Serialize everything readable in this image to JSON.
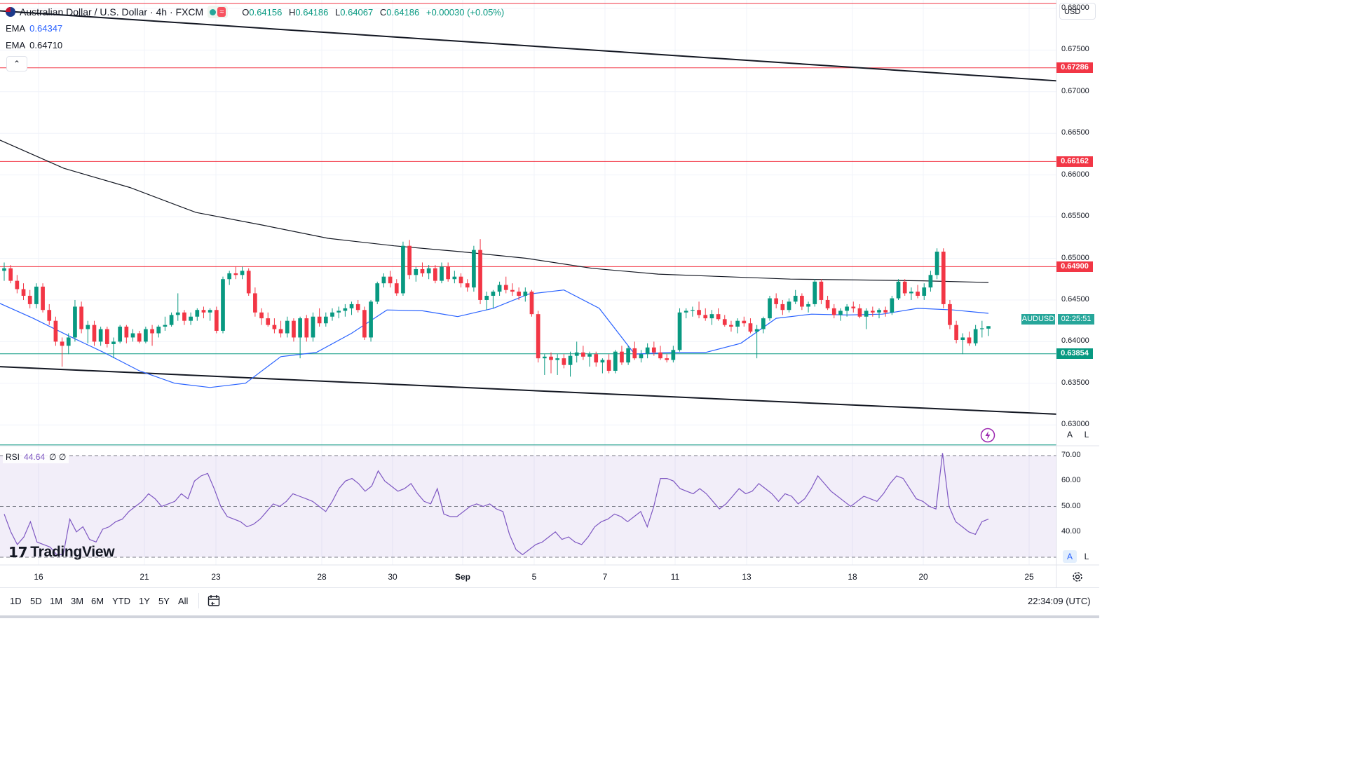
{
  "header": {
    "symbol_title": "Australian Dollar / U.S. Dollar · 4h · FXCM",
    "ohlc": {
      "o_key": "O",
      "o": "0.64156",
      "h_key": "H",
      "h": "0.64186",
      "l_key": "L",
      "l": "0.64067",
      "c_key": "C",
      "c": "0.64186",
      "change": "+0.00030 (+0.05%)"
    },
    "currency": "USD"
  },
  "indicators": {
    "ema1": {
      "label": "EMA",
      "value": "0.64347",
      "color": "#2962ff"
    },
    "ema2": {
      "label": "EMA",
      "value": "0.64710",
      "color": "#131722"
    },
    "rsi": {
      "label": "RSI",
      "value": "44.64",
      "extra1": "∅",
      "extra2": "∅",
      "color": "#7e57c2"
    }
  },
  "price_axis": {
    "ticks": [
      "0.68000",
      "0.67500",
      "0.67000",
      "0.66500",
      "0.66000",
      "0.65500",
      "0.65000",
      "0.64500",
      "0.64000",
      "0.63500",
      "0.63000"
    ],
    "level_tags": [
      {
        "value": "0.67286",
        "color": "#f23645"
      },
      {
        "value": "0.66162",
        "color": "#f23645"
      },
      {
        "value": "0.64900",
        "color": "#f23645"
      },
      {
        "value": "0.63854",
        "color": "#089981"
      }
    ],
    "symbol_tag": "AUDUSD",
    "countdown": "02:25:51"
  },
  "rsi_axis": {
    "ticks": [
      "70.00",
      "60.00",
      "50.00",
      "40.00"
    ]
  },
  "time_axis": {
    "labels": [
      "16",
      "21",
      "23",
      "28",
      "30",
      "Sep",
      "5",
      "7",
      "11",
      "13",
      "18",
      "20",
      "25"
    ]
  },
  "toolbar": {
    "ranges": [
      "1D",
      "5D",
      "1M",
      "3M",
      "6M",
      "YTD",
      "1Y",
      "5Y",
      "All"
    ],
    "clock": "22:34:09 (UTC)",
    "auto_label": "A",
    "log_label": "L",
    "collapse_glyph": "⌃"
  },
  "branding": {
    "logo_text": "TradingView",
    "logo_mark": "17"
  },
  "chart_data": {
    "type": "candlestick",
    "instrument": "AUDUSD",
    "timeframe": "4h",
    "ylim": [
      0.6275,
      0.681
    ],
    "horizontal_levels": [
      {
        "price": 0.6806,
        "color": "#f23645"
      },
      {
        "price": 0.67286,
        "color": "#f23645"
      },
      {
        "price": 0.66162,
        "color": "#f23645"
      },
      {
        "price": 0.649,
        "color": "#f23645"
      },
      {
        "price": 0.63854,
        "color": "#089981"
      },
      {
        "price": 0.6276,
        "color": "#089981"
      }
    ],
    "trendlines": [
      {
        "from": [
          0,
          0.6797
        ],
        "to": [
          1.0,
          0.6713
        ]
      },
      {
        "from": [
          0,
          0.637
        ],
        "to": [
          1.0,
          0.6313
        ]
      }
    ],
    "candles": [
      [
        0.6485,
        0.6495,
        0.6473,
        0.6488
      ],
      [
        0.6488,
        0.6492,
        0.647,
        0.6473
      ],
      [
        0.6473,
        0.648,
        0.6458,
        0.6463
      ],
      [
        0.6463,
        0.647,
        0.645,
        0.6455
      ],
      [
        0.6455,
        0.6462,
        0.644,
        0.6445
      ],
      [
        0.6445,
        0.647,
        0.644,
        0.6466
      ],
      [
        0.6466,
        0.647,
        0.6435,
        0.6438
      ],
      [
        0.6438,
        0.6445,
        0.642,
        0.6425
      ],
      [
        0.6425,
        0.643,
        0.6395,
        0.64
      ],
      [
        0.64,
        0.6405,
        0.637,
        0.6395
      ],
      [
        0.6395,
        0.641,
        0.6385,
        0.6405
      ],
      [
        0.6405,
        0.645,
        0.64,
        0.6442
      ],
      [
        0.6442,
        0.6448,
        0.641,
        0.6415
      ],
      [
        0.6415,
        0.6425,
        0.6398,
        0.642
      ],
      [
        0.642,
        0.6425,
        0.6395,
        0.64
      ],
      [
        0.64,
        0.6418,
        0.6395,
        0.6415
      ],
      [
        0.6415,
        0.6418,
        0.6393,
        0.6397
      ],
      [
        0.6397,
        0.6405,
        0.638,
        0.64
      ],
      [
        0.64,
        0.642,
        0.6398,
        0.6418
      ],
      [
        0.6418,
        0.642,
        0.6398,
        0.6405
      ],
      [
        0.6405,
        0.6415,
        0.64,
        0.641
      ],
      [
        0.641,
        0.6413,
        0.6398,
        0.64
      ],
      [
        0.64,
        0.6418,
        0.6398,
        0.6415
      ],
      [
        0.6415,
        0.642,
        0.6395,
        0.641
      ],
      [
        0.641,
        0.642,
        0.6405,
        0.6418
      ],
      [
        0.6418,
        0.643,
        0.6413,
        0.642
      ],
      [
        0.642,
        0.6435,
        0.6418,
        0.6432
      ],
      [
        0.6432,
        0.6458,
        0.6425,
        0.6435
      ],
      [
        0.6435,
        0.6438,
        0.642,
        0.6425
      ],
      [
        0.6425,
        0.6435,
        0.642,
        0.643
      ],
      [
        0.643,
        0.644,
        0.6425,
        0.6438
      ],
      [
        0.6438,
        0.6442,
        0.6428,
        0.6435
      ],
      [
        0.6435,
        0.644,
        0.6425,
        0.6438
      ],
      [
        0.6438,
        0.6442,
        0.641,
        0.6413
      ],
      [
        0.6413,
        0.6478,
        0.641,
        0.6475
      ],
      [
        0.6475,
        0.6485,
        0.6468,
        0.6482
      ],
      [
        0.6482,
        0.649,
        0.6475,
        0.648
      ],
      [
        0.648,
        0.649,
        0.6475,
        0.6485
      ],
      [
        0.6485,
        0.6488,
        0.6455,
        0.6458
      ],
      [
        0.6458,
        0.6465,
        0.643,
        0.6435
      ],
      [
        0.6435,
        0.644,
        0.642,
        0.6428
      ],
      [
        0.6428,
        0.6435,
        0.6418,
        0.642
      ],
      [
        0.642,
        0.6428,
        0.641,
        0.6415
      ],
      [
        0.6415,
        0.6425,
        0.6405,
        0.641
      ],
      [
        0.641,
        0.643,
        0.6405,
        0.6425
      ],
      [
        0.6425,
        0.6428,
        0.64,
        0.6405
      ],
      [
        0.6405,
        0.643,
        0.638,
        0.6428
      ],
      [
        0.6428,
        0.6432,
        0.64,
        0.6405
      ],
      [
        0.6405,
        0.6435,
        0.64,
        0.643
      ],
      [
        0.643,
        0.644,
        0.6418,
        0.6422
      ],
      [
        0.6422,
        0.6435,
        0.6418,
        0.643
      ],
      [
        0.643,
        0.644,
        0.6425,
        0.6435
      ],
      [
        0.6435,
        0.6442,
        0.6428,
        0.6437
      ],
      [
        0.6437,
        0.6445,
        0.643,
        0.644
      ],
      [
        0.644,
        0.6448,
        0.6432,
        0.6445
      ],
      [
        0.6445,
        0.645,
        0.6435,
        0.6438
      ],
      [
        0.6438,
        0.6442,
        0.6402,
        0.6405
      ],
      [
        0.6405,
        0.645,
        0.64,
        0.6448
      ],
      [
        0.6448,
        0.6472,
        0.6445,
        0.647
      ],
      [
        0.647,
        0.6482,
        0.6465,
        0.6478
      ],
      [
        0.6478,
        0.6485,
        0.6465,
        0.647
      ],
      [
        0.647,
        0.6475,
        0.6455,
        0.6458
      ],
      [
        0.6458,
        0.652,
        0.6455,
        0.6515
      ],
      [
        0.6515,
        0.6522,
        0.6475,
        0.648
      ],
      [
        0.648,
        0.649,
        0.6472,
        0.6487
      ],
      [
        0.6487,
        0.6495,
        0.6478,
        0.6482
      ],
      [
        0.6482,
        0.6492,
        0.6475,
        0.6488
      ],
      [
        0.6488,
        0.6492,
        0.647,
        0.6473
      ],
      [
        0.6473,
        0.6495,
        0.647,
        0.649
      ],
      [
        0.649,
        0.6495,
        0.6472,
        0.6475
      ],
      [
        0.6475,
        0.6485,
        0.647,
        0.6478
      ],
      [
        0.6478,
        0.6482,
        0.6465,
        0.647
      ],
      [
        0.647,
        0.6475,
        0.646,
        0.6465
      ],
      [
        0.6465,
        0.6515,
        0.646,
        0.651
      ],
      [
        0.651,
        0.6523,
        0.6445,
        0.645
      ],
      [
        0.645,
        0.646,
        0.6438,
        0.6455
      ],
      [
        0.6455,
        0.6462,
        0.644,
        0.646
      ],
      [
        0.646,
        0.6472,
        0.6455,
        0.6468
      ],
      [
        0.6468,
        0.6478,
        0.6458,
        0.6462
      ],
      [
        0.6462,
        0.647,
        0.6455,
        0.646
      ],
      [
        0.646,
        0.6465,
        0.645,
        0.6455
      ],
      [
        0.6455,
        0.6465,
        0.6448,
        0.646
      ],
      [
        0.646,
        0.6462,
        0.643,
        0.6433
      ],
      [
        0.6433,
        0.6437,
        0.6375,
        0.638
      ],
      [
        0.638,
        0.6385,
        0.636,
        0.6382
      ],
      [
        0.6382,
        0.6387,
        0.6362,
        0.6378
      ],
      [
        0.6378,
        0.6385,
        0.636,
        0.638
      ],
      [
        0.638,
        0.6385,
        0.6368,
        0.6372
      ],
      [
        0.6372,
        0.6388,
        0.6358,
        0.6383
      ],
      [
        0.6383,
        0.64,
        0.6375,
        0.6387
      ],
      [
        0.6387,
        0.6395,
        0.6378,
        0.6382
      ],
      [
        0.6382,
        0.6388,
        0.637,
        0.6385
      ],
      [
        0.6385,
        0.6388,
        0.637,
        0.6375
      ],
      [
        0.6375,
        0.638,
        0.6362,
        0.6378
      ],
      [
        0.6378,
        0.6385,
        0.6362,
        0.6365
      ],
      [
        0.6365,
        0.639,
        0.6362,
        0.6388
      ],
      [
        0.6388,
        0.6395,
        0.6372,
        0.6375
      ],
      [
        0.6375,
        0.6395,
        0.6372,
        0.6392
      ],
      [
        0.6392,
        0.64,
        0.6378,
        0.638
      ],
      [
        0.638,
        0.639,
        0.6375,
        0.6385
      ],
      [
        0.6385,
        0.6398,
        0.638,
        0.6393
      ],
      [
        0.6393,
        0.64,
        0.6383,
        0.6387
      ],
      [
        0.6387,
        0.6395,
        0.6378,
        0.638
      ],
      [
        0.638,
        0.6385,
        0.6375,
        0.6378
      ],
      [
        0.6378,
        0.6395,
        0.6375,
        0.639
      ],
      [
        0.639,
        0.644,
        0.6388,
        0.6435
      ],
      [
        0.6435,
        0.644,
        0.6428,
        0.6437
      ],
      [
        0.6437,
        0.6442,
        0.643,
        0.6438
      ],
      [
        0.6438,
        0.6448,
        0.6428,
        0.6432
      ],
      [
        0.6432,
        0.644,
        0.6425,
        0.6428
      ],
      [
        0.6428,
        0.6438,
        0.642,
        0.6433
      ],
      [
        0.6433,
        0.644,
        0.6425,
        0.6427
      ],
      [
        0.6427,
        0.6432,
        0.6418,
        0.642
      ],
      [
        0.642,
        0.6425,
        0.6412,
        0.6418
      ],
      [
        0.6418,
        0.6428,
        0.641,
        0.6425
      ],
      [
        0.6425,
        0.643,
        0.6418,
        0.6422
      ],
      [
        0.6422,
        0.6428,
        0.641,
        0.6412
      ],
      [
        0.6412,
        0.642,
        0.638,
        0.6415
      ],
      [
        0.6415,
        0.643,
        0.641,
        0.6428
      ],
      [
        0.6428,
        0.6455,
        0.6425,
        0.6452
      ],
      [
        0.6452,
        0.6458,
        0.644,
        0.6445
      ],
      [
        0.6445,
        0.645,
        0.6432,
        0.6438
      ],
      [
        0.6438,
        0.6452,
        0.6435,
        0.6448
      ],
      [
        0.6448,
        0.6462,
        0.6445,
        0.6455
      ],
      [
        0.6455,
        0.6458,
        0.6438,
        0.6442
      ],
      [
        0.6442,
        0.6448,
        0.6435,
        0.6445
      ],
      [
        0.6445,
        0.6475,
        0.6442,
        0.6472
      ],
      [
        0.6472,
        0.6475,
        0.6445,
        0.645
      ],
      [
        0.645,
        0.6455,
        0.6438,
        0.644
      ],
      [
        0.644,
        0.6445,
        0.6428,
        0.6432
      ],
      [
        0.6432,
        0.644,
        0.6425,
        0.6437
      ],
      [
        0.6437,
        0.6445,
        0.643,
        0.6442
      ],
      [
        0.6442,
        0.6448,
        0.6435,
        0.644
      ],
      [
        0.644,
        0.6445,
        0.6428,
        0.643
      ],
      [
        0.643,
        0.644,
        0.6415,
        0.6437
      ],
      [
        0.6437,
        0.6442,
        0.643,
        0.6435
      ],
      [
        0.6435,
        0.644,
        0.6428,
        0.6438
      ],
      [
        0.6438,
        0.6442,
        0.643,
        0.6435
      ],
      [
        0.6435,
        0.6455,
        0.6432,
        0.6452
      ],
      [
        0.6452,
        0.6475,
        0.645,
        0.6472
      ],
      [
        0.6472,
        0.6475,
        0.6455,
        0.6458
      ],
      [
        0.6458,
        0.6465,
        0.645,
        0.646
      ],
      [
        0.646,
        0.6468,
        0.6452,
        0.6455
      ],
      [
        0.6455,
        0.647,
        0.645,
        0.6465
      ],
      [
        0.6465,
        0.6485,
        0.646,
        0.648
      ],
      [
        0.648,
        0.6512,
        0.6475,
        0.6508
      ],
      [
        0.6508,
        0.6512,
        0.644,
        0.6445
      ],
      [
        0.6445,
        0.645,
        0.6415,
        0.642
      ],
      [
        0.642,
        0.6425,
        0.6398,
        0.6402
      ],
      [
        0.6402,
        0.641,
        0.6385,
        0.6405
      ],
      [
        0.6405,
        0.6412,
        0.6395,
        0.6398
      ],
      [
        0.6398,
        0.642,
        0.6395,
        0.6415
      ],
      [
        0.6415,
        0.6425,
        0.6405,
        0.6416
      ],
      [
        0.64156,
        0.64186,
        0.64067,
        0.64186
      ]
    ],
    "ema_fast": [
      0.6447,
      0.6428,
      0.6407,
      0.6387,
      0.6365,
      0.635,
      0.6345,
      0.635,
      0.6382,
      0.6387,
      0.641,
      0.6438,
      0.6437,
      0.643,
      0.644,
      0.6457,
      0.6462,
      0.644,
      0.6385,
      0.6387,
      0.6387,
      0.6398,
      0.6428,
      0.6433,
      0.6432,
      0.6433,
      0.644,
      0.6438,
      0.6434
    ],
    "ema_slow": [
      0.6643,
      0.6608,
      0.6585,
      0.6555,
      0.654,
      0.6524,
      0.6515,
      0.6508,
      0.65,
      0.6488,
      0.6481,
      0.6478,
      0.6475,
      0.6474,
      0.6473,
      0.6471
    ],
    "rsi": {
      "ylim": [
        25,
        75
      ],
      "levels": [
        70,
        50,
        30
      ],
      "values": [
        47,
        40,
        35,
        38,
        44,
        36,
        35,
        34,
        31,
        31,
        45,
        40,
        42,
        37,
        36,
        41,
        42,
        44,
        45,
        48,
        50,
        52,
        55,
        53,
        50,
        51,
        52,
        55,
        53,
        60,
        62,
        63,
        57,
        50,
        46,
        45,
        44,
        42,
        43,
        45,
        48,
        51,
        50,
        52,
        55,
        54,
        53,
        52,
        50,
        48,
        52,
        57,
        60,
        61,
        59,
        56,
        58,
        64,
        60,
        58,
        56,
        57,
        59,
        55,
        52,
        51,
        57,
        47,
        46,
        46,
        48,
        50,
        51,
        50,
        51,
        49,
        48,
        39,
        33,
        31,
        33,
        35,
        36,
        38,
        40,
        37,
        38,
        36,
        35,
        38,
        42,
        44,
        45,
        47,
        46,
        44,
        46,
        48,
        42,
        50,
        61,
        61,
        60,
        57,
        56,
        55,
        57,
        55,
        52,
        49,
        51,
        54,
        57,
        55,
        56,
        59,
        57,
        55,
        52,
        55,
        54,
        51,
        53,
        57,
        62,
        59,
        56,
        54,
        52,
        50,
        52,
        54,
        53,
        52,
        55,
        59,
        62,
        61,
        57,
        53,
        52,
        50,
        49,
        71,
        50,
        44,
        42,
        40,
        39,
        44,
        45
      ]
    }
  }
}
